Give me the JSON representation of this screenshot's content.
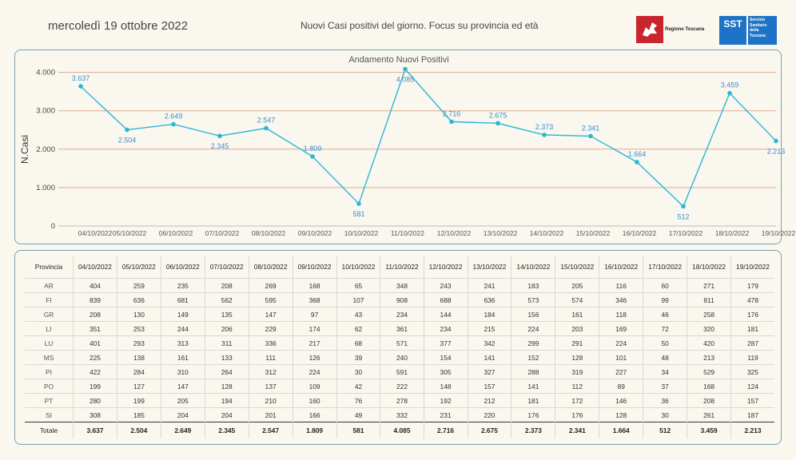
{
  "header": {
    "date": "mercoledì 19 ottobre 2022",
    "subtitle": "Nuovi Casi positivi del giorno. Focus su provincia ed età",
    "logo_regione": "Regione Toscana",
    "logo_sst_short": "SST",
    "logo_sst_lines": [
      "Servizio",
      "Sanitario",
      "della",
      "Toscana"
    ]
  },
  "colors": {
    "line": "#2bb6d6",
    "gridline": "#e3a98e",
    "label": "#3a8fd0",
    "panel_border": "#7aa2b0",
    "background": "#faf7ee"
  },
  "chart_data": {
    "type": "line",
    "title": "Andamento Nuovi Positivi",
    "ylabel": "N.Casi",
    "xlabel": "",
    "x": [
      "04/10/2022",
      "05/10/2022",
      "06/10/2022",
      "07/10/2022",
      "08/10/2022",
      "09/10/2022",
      "10/10/2022",
      "11/10/2022",
      "12/10/2022",
      "13/10/2022",
      "14/10/2022",
      "15/10/2022",
      "16/10/2022",
      "17/10/2022",
      "18/10/2022",
      "19/10/2022"
    ],
    "values": [
      3637,
      2504,
      2649,
      2345,
      2547,
      1809,
      581,
      4085,
      2716,
      2675,
      2373,
      2341,
      1664,
      512,
      3459,
      2213
    ],
    "value_labels": [
      "3.637",
      "2.504",
      "2.649",
      "2.345",
      "2.547",
      "1.809",
      "581",
      "4.085",
      "2.716",
      "2.675",
      "2.373",
      "2.341",
      "1.664",
      "512",
      "3.459",
      "2.213"
    ],
    "label_position": [
      "above",
      "below",
      "above",
      "below",
      "above",
      "above",
      "below",
      "below",
      "above",
      "above",
      "above",
      "above",
      "above",
      "below",
      "above",
      "below"
    ],
    "yticks": [
      0,
      1000,
      2000,
      3000,
      4000
    ],
    "ytick_labels": [
      "0",
      "1.000",
      "2.000",
      "3.000",
      "4.000"
    ],
    "ylim": [
      0,
      4200
    ],
    "grid": true
  },
  "table": {
    "header_first": "Provincia",
    "dates": [
      "04/10/2022",
      "05/10/2022",
      "06/10/2022",
      "07/10/2022",
      "08/10/2022",
      "09/10/2022",
      "10/10/2022",
      "11/10/2022",
      "12/10/2022",
      "13/10/2022",
      "14/10/2022",
      "15/10/2022",
      "16/10/2022",
      "17/10/2022",
      "18/10/2022",
      "19/10/2022"
    ],
    "rows": [
      {
        "prov": "AR",
        "values": [
          "404",
          "259",
          "235",
          "208",
          "269",
          "168",
          "65",
          "348",
          "243",
          "241",
          "183",
          "205",
          "116",
          "60",
          "271",
          "179"
        ]
      },
      {
        "prov": "FI",
        "values": [
          "839",
          "636",
          "681",
          "562",
          "595",
          "368",
          "107",
          "908",
          "688",
          "636",
          "573",
          "574",
          "346",
          "99",
          "811",
          "478"
        ]
      },
      {
        "prov": "GR",
        "values": [
          "208",
          "130",
          "149",
          "135",
          "147",
          "97",
          "43",
          "234",
          "144",
          "184",
          "156",
          "161",
          "118",
          "46",
          "258",
          "176"
        ]
      },
      {
        "prov": "LI",
        "values": [
          "351",
          "253",
          "244",
          "206",
          "229",
          "174",
          "62",
          "361",
          "234",
          "215",
          "224",
          "203",
          "169",
          "72",
          "320",
          "181"
        ]
      },
      {
        "prov": "LU",
        "values": [
          "401",
          "293",
          "313",
          "311",
          "336",
          "217",
          "68",
          "571",
          "377",
          "342",
          "299",
          "291",
          "224",
          "50",
          "420",
          "287"
        ]
      },
      {
        "prov": "MS",
        "values": [
          "225",
          "138",
          "161",
          "133",
          "111",
          "126",
          "39",
          "240",
          "154",
          "141",
          "152",
          "128",
          "101",
          "48",
          "213",
          "119"
        ]
      },
      {
        "prov": "PI",
        "values": [
          "422",
          "284",
          "310",
          "264",
          "312",
          "224",
          "30",
          "591",
          "305",
          "327",
          "288",
          "319",
          "227",
          "34",
          "529",
          "325"
        ]
      },
      {
        "prov": "PO",
        "values": [
          "199",
          "127",
          "147",
          "128",
          "137",
          "109",
          "42",
          "222",
          "148",
          "157",
          "141",
          "112",
          "89",
          "37",
          "168",
          "124"
        ]
      },
      {
        "prov": "PT",
        "values": [
          "280",
          "199",
          "205",
          "194",
          "210",
          "160",
          "76",
          "278",
          "192",
          "212",
          "181",
          "172",
          "146",
          "36",
          "208",
          "157"
        ]
      },
      {
        "prov": "SI",
        "values": [
          "308",
          "185",
          "204",
          "204",
          "201",
          "166",
          "49",
          "332",
          "231",
          "220",
          "176",
          "176",
          "128",
          "30",
          "261",
          "187"
        ]
      }
    ],
    "total_label": "Totale",
    "totals": [
      "3.637",
      "2.504",
      "2.649",
      "2.345",
      "2.547",
      "1.809",
      "581",
      "4.085",
      "2.716",
      "2.675",
      "2.373",
      "2.341",
      "1.664",
      "512",
      "3.459",
      "2.213"
    ]
  }
}
